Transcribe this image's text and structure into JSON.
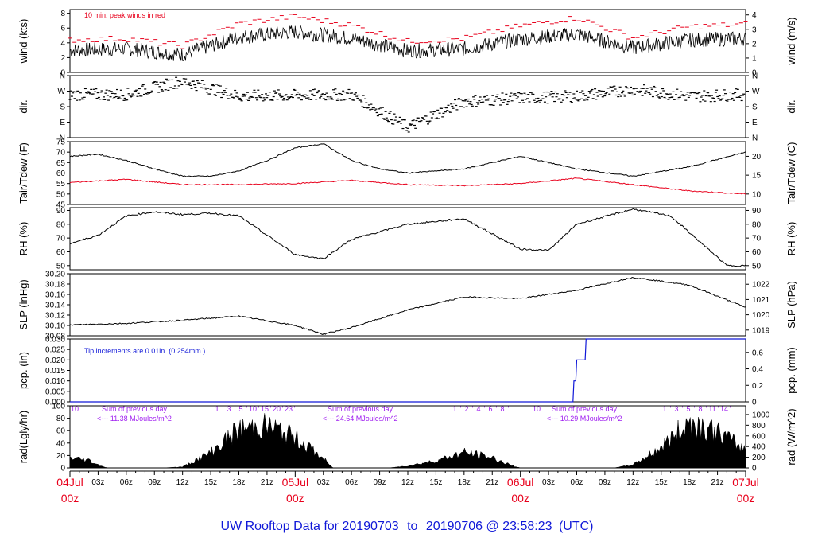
{
  "footer": {
    "prefix": "UW Rooftop Data for",
    "start": "20190703",
    "to": "to",
    "end": "20190706",
    "at": "@ 23:58:23",
    "zone": "(UTC)"
  },
  "x_axis": {
    "hour_labels": [
      "03z",
      "06z",
      "09z",
      "12z",
      "15z",
      "18z",
      "21z",
      "03z",
      "06z",
      "09z",
      "12z",
      "15z",
      "18z",
      "21z",
      "03z",
      "06z",
      "09z",
      "12z",
      "15z",
      "18z",
      "21z"
    ],
    "day_labels": [
      {
        "day": "04Jul",
        "hour": "00z"
      },
      {
        "day": "05Jul",
        "hour": "00z"
      },
      {
        "day": "06Jul",
        "hour": "00z"
      },
      {
        "day": "07Jul",
        "hour": "00z"
      }
    ]
  },
  "chart_data": [
    {
      "type": "line",
      "id": "wind",
      "ylabel_left": "wind (kts)",
      "ylabel_right": "wind (m/s)",
      "ylim": [
        0,
        8.5
      ],
      "left_ticks": [
        0,
        2,
        4,
        6,
        8
      ],
      "right_ticks": [
        0,
        1,
        2,
        3,
        4
      ],
      "annotation": "10 min. peak winds in red",
      "series": [
        {
          "name": "wind speed",
          "color": "#000000",
          "x": [
            0,
            6,
            12,
            18,
            24,
            30,
            36,
            42,
            48,
            54,
            60,
            66,
            72
          ],
          "y": [
            3.0,
            3.2,
            2.4,
            4.8,
            5.5,
            4.6,
            2.9,
            3.2,
            4.5,
            5.2,
            3.3,
            4.4,
            4.6
          ]
        },
        {
          "name": "peak",
          "color": "#e8001c",
          "x": [
            0,
            6,
            12,
            18,
            24,
            30,
            36,
            42,
            48,
            54,
            60,
            66,
            72
          ],
          "y": [
            4.4,
            4.6,
            3.6,
            6.6,
            7.6,
            6.4,
            4.2,
            4.6,
            6.3,
            7.4,
            4.7,
            6.2,
            6.5
          ]
        }
      ]
    },
    {
      "type": "scatter",
      "id": "dir",
      "ylabel_left": "dir.",
      "ylabel_right": "dir.",
      "ylim": [
        0,
        360
      ],
      "left_ticks": [
        "N",
        "E",
        "S",
        "W",
        "N"
      ],
      "right_ticks": [
        "N",
        "E",
        "S",
        "W",
        "N"
      ],
      "series": [
        {
          "name": "direction",
          "color": "#000000",
          "x": [
            0,
            6,
            12,
            18,
            24,
            30,
            36,
            42,
            48,
            54,
            60,
            66,
            72
          ],
          "y": [
            250,
            250,
            330,
            240,
            245,
            250,
            60,
            210,
            230,
            240,
            280,
            240,
            250
          ]
        }
      ]
    },
    {
      "type": "line",
      "id": "temp",
      "ylabel_left": "Tair/Tdew (F)",
      "ylabel_right": "Tair/Tdew (C)",
      "ylim": [
        45,
        75
      ],
      "left_ticks": [
        45,
        50,
        55,
        60,
        65,
        70,
        75
      ],
      "right_ticks": [
        10,
        15,
        20
      ],
      "series": [
        {
          "name": "Tair",
          "color": "#000000",
          "x": [
            0,
            3,
            6,
            9,
            12,
            15,
            18,
            21,
            24,
            27,
            30,
            33,
            36,
            42,
            48,
            54,
            60,
            66,
            72
          ],
          "y": [
            68,
            69,
            66,
            62,
            58.5,
            58.5,
            61,
            66,
            72,
            74,
            66,
            62,
            60,
            62,
            68,
            62,
            58.5,
            63,
            70
          ]
        },
        {
          "name": "Tdew",
          "color": "#e8001c",
          "x": [
            0,
            6,
            12,
            18,
            24,
            30,
            36,
            42,
            48,
            54,
            60,
            66,
            72
          ],
          "y": [
            55.5,
            57,
            54.5,
            54.5,
            55,
            56.5,
            54.5,
            54,
            55,
            57.5,
            54.5,
            51.5,
            50
          ]
        }
      ]
    },
    {
      "type": "line",
      "id": "rh",
      "ylabel_left": "RH (%)",
      "ylabel_right": "RH (%)",
      "ylim": [
        47,
        92
      ],
      "left_ticks": [
        50,
        60,
        70,
        80,
        90
      ],
      "right_ticks": [
        50,
        60,
        70,
        80,
        90
      ],
      "series": [
        {
          "name": "RH",
          "color": "#000000",
          "x": [
            0,
            3,
            6,
            9,
            12,
            15,
            18,
            21,
            24,
            27,
            30,
            36,
            42,
            48,
            51,
            54,
            60,
            64,
            66,
            68,
            70,
            72
          ],
          "y": [
            66,
            72,
            86,
            89,
            87,
            88,
            86,
            72,
            58,
            55,
            69,
            80,
            84,
            62,
            61,
            80,
            91,
            86,
            74,
            62,
            50,
            50
          ]
        }
      ]
    },
    {
      "type": "line",
      "id": "slp",
      "ylabel_left": "SLP (inHg)",
      "ylabel_right": "SLP (hPa)",
      "ylim": [
        30.08,
        30.2
      ],
      "left_ticks": [
        "30.08",
        "30.10",
        "30.12",
        "30.14",
        "30.16",
        "30.18",
        "30.20"
      ],
      "right_ticks": [
        1019,
        1020,
        1021,
        1022
      ],
      "series": [
        {
          "name": "SLP",
          "color": "#000000",
          "x": [
            0,
            6,
            12,
            18,
            24,
            27,
            30,
            36,
            42,
            48,
            54,
            60,
            66,
            72
          ],
          "y": [
            30.101,
            30.104,
            30.11,
            30.118,
            30.1,
            30.083,
            30.096,
            30.13,
            30.155,
            30.152,
            30.168,
            30.193,
            30.178,
            30.135
          ]
        }
      ]
    },
    {
      "type": "line",
      "id": "pcp",
      "ylabel_left": "pcp. (in)",
      "ylabel_right": "pcp. (mm)",
      "ylim": [
        0,
        0.03
      ],
      "left_ticks": [
        "0.000",
        "0.005",
        "0.010",
        "0.015",
        "0.020",
        "0.025",
        "0.030"
      ],
      "right_ticks": [
        0,
        0.2,
        0.4,
        0.6
      ],
      "annotation": "Tip increments are 0.01in. (0.254mm.)",
      "series": [
        {
          "name": "cumulative precipitation",
          "color": "#1018d8",
          "x": [
            0,
            53.6,
            53.7,
            53.9,
            54.0,
            54.9,
            55.0,
            72
          ],
          "y": [
            0,
            0,
            0.01,
            0.01,
            0.02,
            0.02,
            0.03,
            0.03
          ]
        }
      ]
    },
    {
      "type": "area",
      "id": "rad",
      "ylabel_left": "rad(Lgly/hr)",
      "ylabel_right": "rad (W/m^2)",
      "ylim": [
        0,
        100
      ],
      "left_ticks": [
        0,
        20,
        40,
        60,
        80,
        100
      ],
      "right_ticks": [
        0,
        200,
        400,
        600,
        800,
        1000
      ],
      "series": [
        {
          "name": "radiation",
          "color": "#000000",
          "x": [
            0,
            2,
            3,
            4,
            10,
            12,
            15,
            18,
            21,
            24,
            27,
            28,
            34,
            36,
            39,
            42,
            45,
            47,
            48,
            58,
            60,
            63,
            66,
            69,
            72
          ],
          "y": [
            20,
            15,
            6,
            0,
            0,
            2,
            30,
            75,
            82,
            60,
            18,
            0,
            0,
            4,
            14,
            30,
            20,
            5,
            0,
            0,
            6,
            40,
            90,
            70,
            35
          ]
        }
      ],
      "day_sums": [
        {
          "title": "Sum of previous day",
          "value": "<--- 11.38 MJoules/m^2"
        },
        {
          "title": "Sum of previous day",
          "value": "<--- 24.64 MJoules/m^2"
        },
        {
          "title": "Sum of previous day",
          "value": "<--- 10.29 MJoules/m^2"
        }
      ],
      "hour_marks": [
        {
          "labels": [
            "1",
            "'",
            "3",
            "'",
            "5",
            "'",
            "10",
            "'",
            "15",
            "'",
            "20",
            "'",
            "23",
            "'"
          ]
        },
        {
          "labels": [
            "1",
            "'",
            "2",
            "'",
            "4",
            "'",
            "6",
            "'",
            "8",
            "'"
          ]
        },
        {
          "labels": [
            "1",
            "'",
            "3",
            "'",
            "5",
            "'",
            "8",
            "'",
            "11",
            "'",
            "14",
            "'"
          ]
        }
      ],
      "start_mark": "10",
      "mid_mark": "10"
    }
  ]
}
